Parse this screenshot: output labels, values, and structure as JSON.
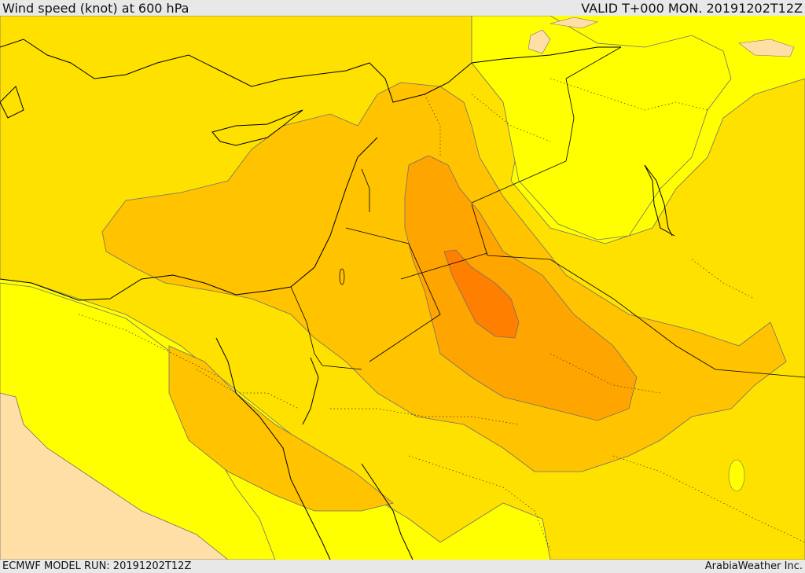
{
  "header": {
    "title": "Wind speed (knot) at 600 hPa",
    "valid": "VALID T+000 MON. 20191202T12Z"
  },
  "footer": {
    "model_run": "ECMWF MODEL RUN: 20191202T12Z",
    "credit": "ArabiaWeather Inc."
  },
  "palette": {
    "band_lightest": "#ffff00",
    "band_light": "#ffe100",
    "band_mid": "#ffc300",
    "band_high": "#ffa500",
    "band_highest": "#ff7f00",
    "band_calm": "#ffdfa6",
    "border": "#000000",
    "contour": "#707070"
  }
}
